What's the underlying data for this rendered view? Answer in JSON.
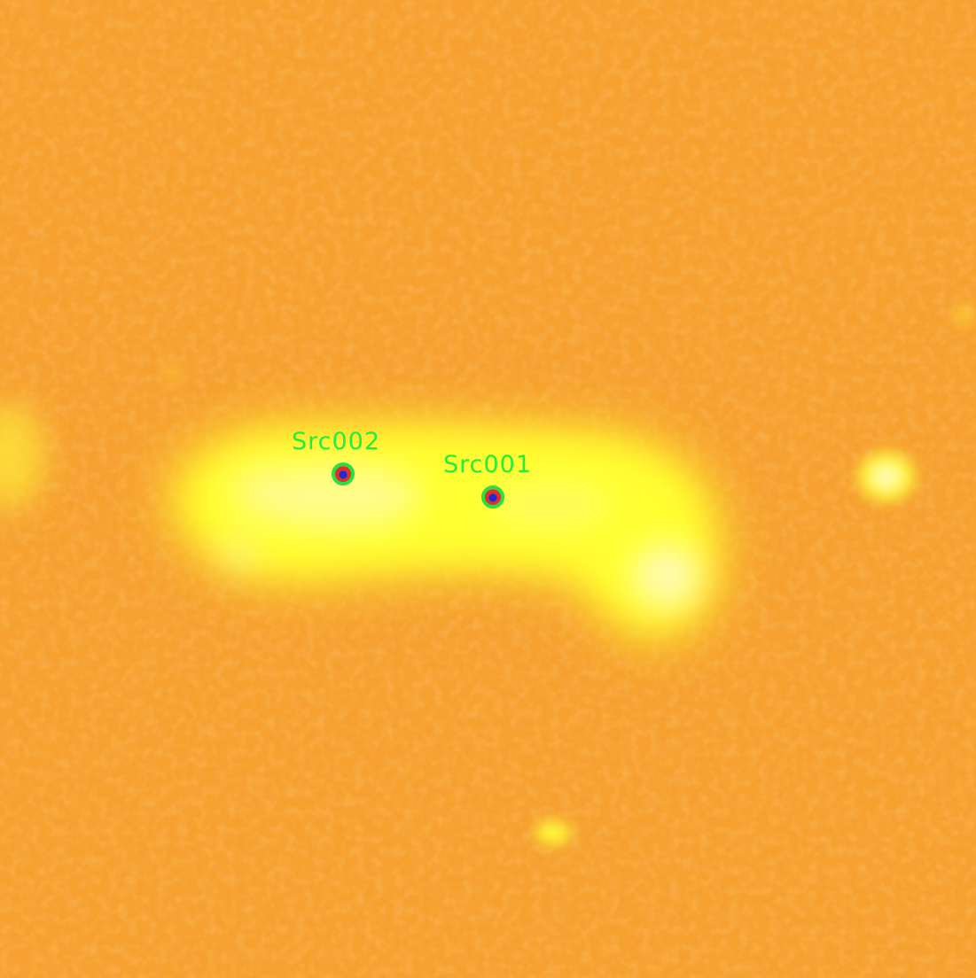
{
  "sources": [
    {
      "label": "Src002"
    },
    {
      "label": "Src001"
    }
  ],
  "colors": {
    "background_orange": "#f59a2c",
    "emission_yellow": "#ffff2e",
    "core_white": "#fff8d0",
    "label_green": "#22ee3c",
    "marker_green": "#28e040",
    "marker_red": "#e0302a",
    "marker_blue": "#1a2cd8"
  }
}
